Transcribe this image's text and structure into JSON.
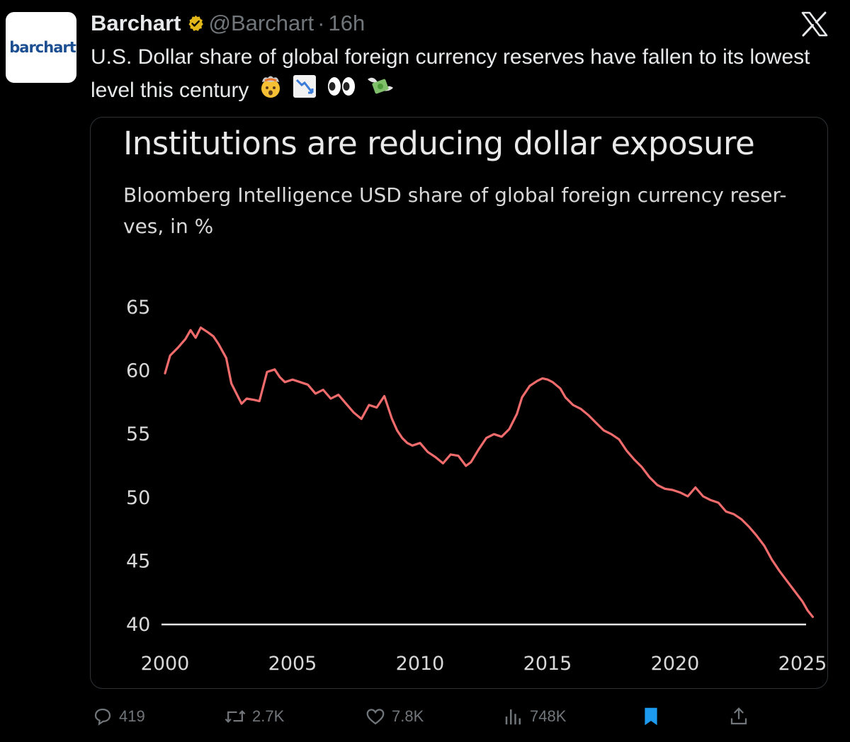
{
  "tweet": {
    "avatar_text": "barchart",
    "display_name": "Barchart",
    "handle": "@Barchart",
    "separator": "·",
    "time": "16h",
    "text": "U.S. Dollar share of global foreign currency reserves have fallen to its lowest level this century",
    "emojis": [
      "exploding-head-icon",
      "chart-decreasing-icon",
      "eyes-icon",
      "money-with-wings-icon"
    ]
  },
  "chart_data": {
    "type": "line",
    "title": "Institutions are reducing dollar exposure",
    "subtitle": "Bloomberg Intelligence USD share of global foreign currency reser-ves, in %",
    "xlabel": "",
    "ylabel": "",
    "xlim": [
      2000,
      2025
    ],
    "ylim": [
      40,
      65
    ],
    "x_ticks": [
      "2000",
      "2005",
      "2010",
      "2015",
      "2020",
      "2025"
    ],
    "y_ticks": [
      "40",
      "45",
      "50",
      "55",
      "60",
      "65"
    ],
    "line_color": "#f06b6b",
    "series": [
      {
        "name": "USD share",
        "x": [
          2000.0,
          2000.2,
          2000.5,
          2000.8,
          2001.0,
          2001.2,
          2001.4,
          2001.7,
          2001.9,
          2002.1,
          2002.4,
          2002.6,
          2002.8,
          2003.0,
          2003.2,
          2003.5,
          2003.7,
          2004.0,
          2004.3,
          2004.5,
          2004.7,
          2005.0,
          2005.3,
          2005.6,
          2005.9,
          2006.2,
          2006.5,
          2006.8,
          2007.1,
          2007.4,
          2007.7,
          2008.0,
          2008.3,
          2008.6,
          2008.9,
          2009.1,
          2009.3,
          2009.5,
          2009.7,
          2010.0,
          2010.3,
          2010.6,
          2010.9,
          2011.2,
          2011.5,
          2011.8,
          2012.0,
          2012.3,
          2012.6,
          2012.9,
          2013.2,
          2013.5,
          2013.8,
          2014.0,
          2014.3,
          2014.6,
          2014.8,
          2015.0,
          2015.2,
          2015.5,
          2015.7,
          2016.0,
          2016.3,
          2016.6,
          2016.9,
          2017.2,
          2017.5,
          2017.8,
          2018.1,
          2018.4,
          2018.7,
          2019.0,
          2019.3,
          2019.6,
          2019.9,
          2020.2,
          2020.5,
          2020.8,
          2021.1,
          2021.4,
          2021.7,
          2022.0,
          2022.3,
          2022.6,
          2022.9,
          2023.2,
          2023.5,
          2023.8,
          2024.1,
          2024.4,
          2024.7,
          2025.0,
          2025.2,
          2025.4
        ],
        "values": [
          59.8,
          61.2,
          61.8,
          62.5,
          63.2,
          62.6,
          63.4,
          63.0,
          62.7,
          62.1,
          61.0,
          59.0,
          58.2,
          57.4,
          57.8,
          57.7,
          57.6,
          59.9,
          60.1,
          59.5,
          59.1,
          59.3,
          59.1,
          58.9,
          58.2,
          58.5,
          57.8,
          58.1,
          57.4,
          56.7,
          56.2,
          57.3,
          57.1,
          58.0,
          56.2,
          55.3,
          54.7,
          54.3,
          54.1,
          54.3,
          53.6,
          53.2,
          52.7,
          53.4,
          53.3,
          52.5,
          52.8,
          53.8,
          54.7,
          55.0,
          54.8,
          55.4,
          56.6,
          57.9,
          58.8,
          59.2,
          59.4,
          59.3,
          59.1,
          58.6,
          57.9,
          57.3,
          57.0,
          56.5,
          55.9,
          55.3,
          55.0,
          54.6,
          53.7,
          53.0,
          52.4,
          51.6,
          51.0,
          50.7,
          50.6,
          50.4,
          50.1,
          50.8,
          50.1,
          49.8,
          49.6,
          48.9,
          48.7,
          48.3,
          47.7,
          47.0,
          46.2,
          45.1,
          44.2,
          43.4,
          42.6,
          41.8,
          41.1,
          40.6
        ]
      }
    ]
  },
  "actions": {
    "replies": "419",
    "retweets": "2.7K",
    "likes": "7.8K",
    "views": "748K"
  },
  "colors": {
    "background": "#000000",
    "text": "#e7e9ea",
    "muted": "#71767b",
    "verified": "#e2b719",
    "bookmark": "#1d9bf0",
    "brand": "#1c4f91"
  }
}
